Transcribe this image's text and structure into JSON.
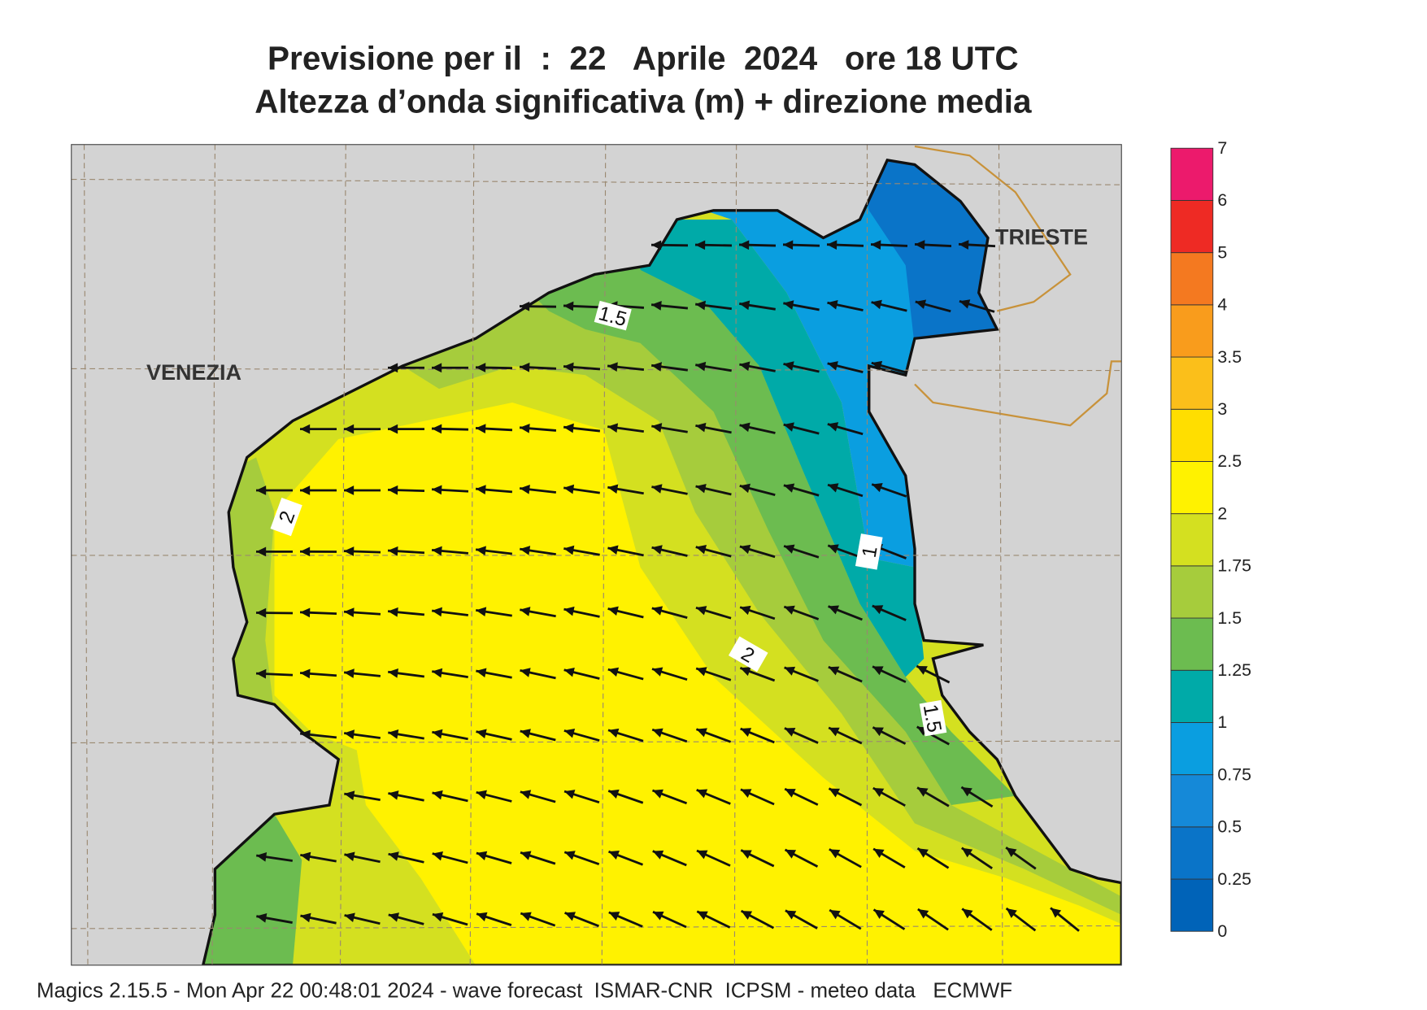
{
  "header": {
    "title": "Previsione per il  :  22   Aprile  2024   ore 18 UTC",
    "subtitle": "Altezza d’onda significativa (m) + direzione media"
  },
  "map": {
    "places": [
      "VENEZIA",
      "TRIESTE"
    ],
    "contour_labels": [
      "1.5",
      "2",
      "1",
      "2",
      "1.5"
    ]
  },
  "legend": {
    "levels": [
      0,
      0.25,
      0.5,
      0.75,
      1,
      1.25,
      1.5,
      1.75,
      2,
      2.5,
      3,
      3.5,
      4,
      5,
      6,
      7
    ],
    "colors": [
      "#0063b8",
      "#0a74c8",
      "#1589d8",
      "#0a9ee0",
      "#00aaa8",
      "#6cbc50",
      "#a6cc3c",
      "#d4e020",
      "#fff200",
      "#ffde00",
      "#fbbf1a",
      "#f99c1c",
      "#f47920",
      "#ee2a24",
      "#ec1a6c"
    ]
  },
  "footer": "Magics 2.15.5 - Mon Apr 22 00:48:01 2024 - wave forecast  ISMAR-CNR  ICPSM - meteo data   ECMWF"
}
